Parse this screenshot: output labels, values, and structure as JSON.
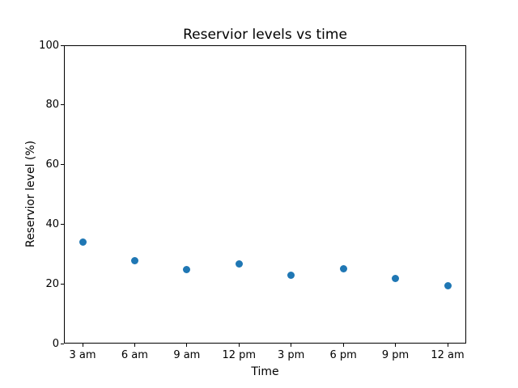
{
  "figure": {
    "background": "#ffffff"
  },
  "chart_data": {
    "type": "scatter",
    "title": "Reservior levels vs time",
    "xlabel": "Time",
    "ylabel": "Reservior level (%)",
    "categories": [
      "3 am",
      "6 am",
      "9 am",
      "12 pm",
      "3 pm",
      "6 pm",
      "9 pm",
      "12 am"
    ],
    "values": [
      34.0,
      27.9,
      24.7,
      26.7,
      22.9,
      25.1,
      21.7,
      19.3
    ],
    "ylim": [
      0,
      100
    ],
    "yticks": [
      0,
      20,
      40,
      60,
      80,
      100
    ],
    "marker_color": "#1f77b4",
    "text_color": "#000000",
    "grid": false,
    "legend": "none",
    "frame": true
  }
}
